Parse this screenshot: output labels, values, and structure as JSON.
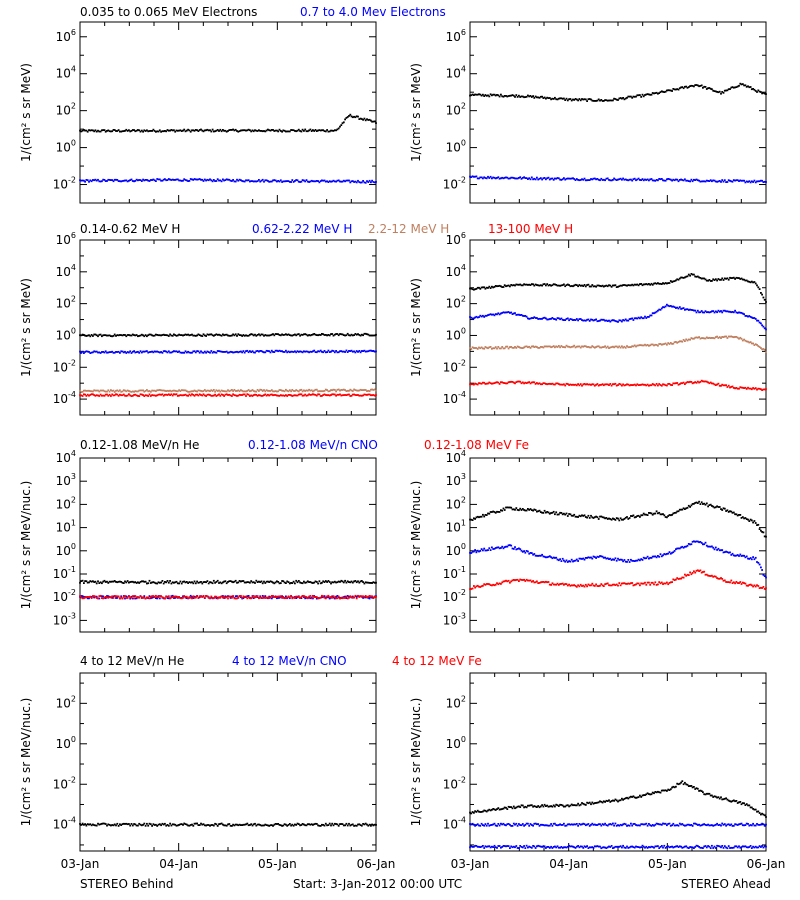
{
  "chart_data": {
    "type": "scatter",
    "yscale": "log",
    "x_ticks": [
      "03-Jan",
      "04-Jan",
      "05-Jan",
      "06-Jan"
    ],
    "xlim": [
      "2012-01-03T00:00",
      "2012-01-06T00:00"
    ],
    "footer": {
      "left": "STEREO Behind",
      "center": "Start:  3-Jan-2012 00:00 UTC",
      "right": "STEREO Ahead"
    },
    "rows": [
      {
        "title_entries": [
          {
            "text": "0.035 to 0.065 MeV Electrons",
            "color": "#000000"
          },
          {
            "text": "0.7 to 4.0 Mev Electrons",
            "color": "#0000ff"
          }
        ],
        "ylabel": "1/(cm² s sr MeV)",
        "ylim_exp": [
          -3,
          6.8
        ],
        "yticks": [
          -2,
          0,
          2,
          4,
          6
        ],
        "behind": [
          {
            "color": "#000000",
            "values": [
              [
                0,
                0.9
              ],
              [
                1.1,
                0.92
              ],
              [
                2,
                0.92
              ],
              [
                2.6,
                0.92
              ],
              [
                2.73,
                1.75
              ],
              [
                3,
                1.35
              ]
            ]
          },
          {
            "color": "#0000ff",
            "values": [
              [
                0,
                -1.8
              ],
              [
                1,
                -1.75
              ],
              [
                2,
                -1.8
              ],
              [
                3,
                -1.85
              ]
            ]
          }
        ],
        "ahead": [
          {
            "color": "#000000",
            "values": [
              [
                0,
                2.85
              ],
              [
                0.5,
                2.8
              ],
              [
                1,
                2.6
              ],
              [
                1.4,
                2.55
              ],
              [
                1.8,
                2.85
              ],
              [
                2,
                3.05
              ],
              [
                2.3,
                3.4
              ],
              [
                2.55,
                2.95
              ],
              [
                2.75,
                3.45
              ],
              [
                3,
                2.85
              ]
            ]
          },
          {
            "color": "#0000ff",
            "values": [
              [
                0,
                -1.6
              ],
              [
                1,
                -1.7
              ],
              [
                2,
                -1.75
              ],
              [
                3,
                -1.85
              ]
            ]
          }
        ]
      },
      {
        "title_entries": [
          {
            "text": "0.14-0.62 MeV H",
            "color": "#000000"
          },
          {
            "text": "0.62-2.22 MeV H",
            "color": "#0000ff"
          },
          {
            "text": "2.2-12 MeV H",
            "color": "#c08060"
          },
          {
            "text": "13-100 MeV H",
            "color": "#ff0000"
          }
        ],
        "ylabel": "1/(cm² s sr MeV)",
        "ylim_exp": [
          -5,
          6
        ],
        "yticks": [
          -4,
          -2,
          0,
          2,
          4,
          6
        ],
        "behind": [
          {
            "color": "#000000",
            "values": [
              [
                0,
                0
              ],
              [
                3,
                0.05
              ]
            ]
          },
          {
            "color": "#0000ff",
            "values": [
              [
                0,
                -1.05
              ],
              [
                3,
                -1.0
              ]
            ]
          },
          {
            "color": "#c08060",
            "values": [
              [
                0,
                -3.5
              ],
              [
                3,
                -3.45
              ]
            ]
          },
          {
            "color": "#ff0000",
            "values": [
              [
                0,
                -3.75
              ],
              [
                3,
                -3.75
              ]
            ]
          }
        ],
        "ahead": [
          {
            "color": "#000000",
            "values": [
              [
                0,
                2.9
              ],
              [
                0.5,
                3.2
              ],
              [
                1,
                3.15
              ],
              [
                1.5,
                3.1
              ],
              [
                2,
                3.3
              ],
              [
                2.25,
                3.85
              ],
              [
                2.4,
                3.45
              ],
              [
                2.7,
                3.6
              ],
              [
                2.9,
                3.3
              ],
              [
                3,
                2.1
              ]
            ]
          },
          {
            "color": "#0000ff",
            "values": [
              [
                0,
                1.1
              ],
              [
                0.4,
                1.45
              ],
              [
                0.6,
                1.1
              ],
              [
                1.5,
                0.9
              ],
              [
                1.8,
                1.15
              ],
              [
                2,
                1.9
              ],
              [
                2.3,
                1.5
              ],
              [
                2.7,
                1.5
              ],
              [
                2.9,
                1.0
              ],
              [
                3,
                0.4
              ]
            ]
          },
          {
            "color": "#c08060",
            "values": [
              [
                0,
                -0.8
              ],
              [
                1,
                -0.7
              ],
              [
                1.5,
                -0.75
              ],
              [
                2,
                -0.55
              ],
              [
                2.3,
                -0.15
              ],
              [
                2.7,
                -0.1
              ],
              [
                2.9,
                -0.6
              ],
              [
                3,
                -1.0
              ]
            ]
          },
          {
            "color": "#ff0000",
            "values": [
              [
                0,
                -3.05
              ],
              [
                0.5,
                -2.95
              ],
              [
                1,
                -3.1
              ],
              [
                2,
                -3.1
              ],
              [
                2.35,
                -2.9
              ],
              [
                2.7,
                -3.3
              ],
              [
                3,
                -3.4
              ]
            ]
          }
        ]
      },
      {
        "title_entries": [
          {
            "text": "0.12-1.08 MeV/n He",
            "color": "#000000"
          },
          {
            "text": "0.12-1.08 MeV/n CNO",
            "color": "#0000ff"
          },
          {
            "text": "0.12-1.08 MeV Fe",
            "color": "#ff0000"
          }
        ],
        "ylabel": "1/(cm² s sr MeV/nuc.)",
        "ylim_exp": [
          -3.5,
          4
        ],
        "yticks": [
          -3,
          -2,
          -1,
          0,
          1,
          2,
          3,
          4
        ],
        "behind": [
          {
            "color": "#000000",
            "values": [
              [
                0,
                -1.35
              ],
              [
                3,
                -1.35
              ]
            ]
          },
          {
            "color": "#0000ff",
            "values": [
              [
                0,
                -2.0
              ],
              [
                3,
                -2.0
              ]
            ]
          },
          {
            "color": "#ff0000",
            "values": [
              [
                0,
                -2.0
              ],
              [
                3,
                -2.0
              ]
            ]
          }
        ],
        "ahead": [
          {
            "color": "#000000",
            "values": [
              [
                0,
                1.35
              ],
              [
                0.4,
                1.85
              ],
              [
                1,
                1.55
              ],
              [
                1.5,
                1.35
              ],
              [
                1.9,
                1.65
              ],
              [
                2,
                1.45
              ],
              [
                2.3,
                2.1
              ],
              [
                2.6,
                1.75
              ],
              [
                2.9,
                1.2
              ],
              [
                3,
                0.6
              ]
            ]
          },
          {
            "color": "#0000ff",
            "values": [
              [
                0,
                -0.05
              ],
              [
                0.4,
                0.2
              ],
              [
                0.6,
                -0.1
              ],
              [
                1,
                -0.45
              ],
              [
                1.3,
                -0.25
              ],
              [
                1.6,
                -0.45
              ],
              [
                2,
                -0.15
              ],
              [
                2.3,
                0.45
              ],
              [
                2.6,
                -0.1
              ],
              [
                2.9,
                -0.35
              ],
              [
                3,
                -1.2
              ]
            ]
          },
          {
            "color": "#ff0000",
            "values": [
              [
                0,
                -1.6
              ],
              [
                0.5,
                -1.25
              ],
              [
                1,
                -1.5
              ],
              [
                2,
                -1.4
              ],
              [
                2.3,
                -0.85
              ],
              [
                2.6,
                -1.3
              ],
              [
                3,
                -1.6
              ]
            ]
          }
        ]
      },
      {
        "title_entries": [
          {
            "text": "4 to 12 MeV/n He",
            "color": "#000000"
          },
          {
            "text": "4 to 12 MeV/n CNO",
            "color": "#0000ff"
          },
          {
            "text": "4 to 12 MeV Fe",
            "color": "#ff0000"
          }
        ],
        "ylabel": "1/(cm² s sr MeV/nuc.)",
        "ylim_exp": [
          -5.3,
          3.5
        ],
        "yticks": [
          -4,
          -2,
          0,
          2
        ],
        "behind": [
          {
            "color": "#000000",
            "values": [
              [
                0,
                -4.0
              ],
              [
                3,
                -4.0
              ]
            ]
          }
        ],
        "ahead": [
          {
            "color": "#000000",
            "values": [
              [
                0,
                -3.4
              ],
              [
                0.5,
                -3.1
              ],
              [
                1,
                -3.05
              ],
              [
                1.5,
                -2.8
              ],
              [
                2,
                -2.3
              ],
              [
                2.15,
                -1.9
              ],
              [
                2.4,
                -2.5
              ],
              [
                2.8,
                -3.0
              ],
              [
                3,
                -3.6
              ]
            ]
          },
          {
            "color": "#0000ff",
            "values": [
              [
                0,
                -4.0
              ],
              [
                3,
                -4.0
              ]
            ]
          },
          {
            "color": "#0000ff",
            "values": [
              [
                0,
                -5.1
              ],
              [
                3,
                -5.1
              ]
            ]
          }
        ]
      }
    ]
  }
}
